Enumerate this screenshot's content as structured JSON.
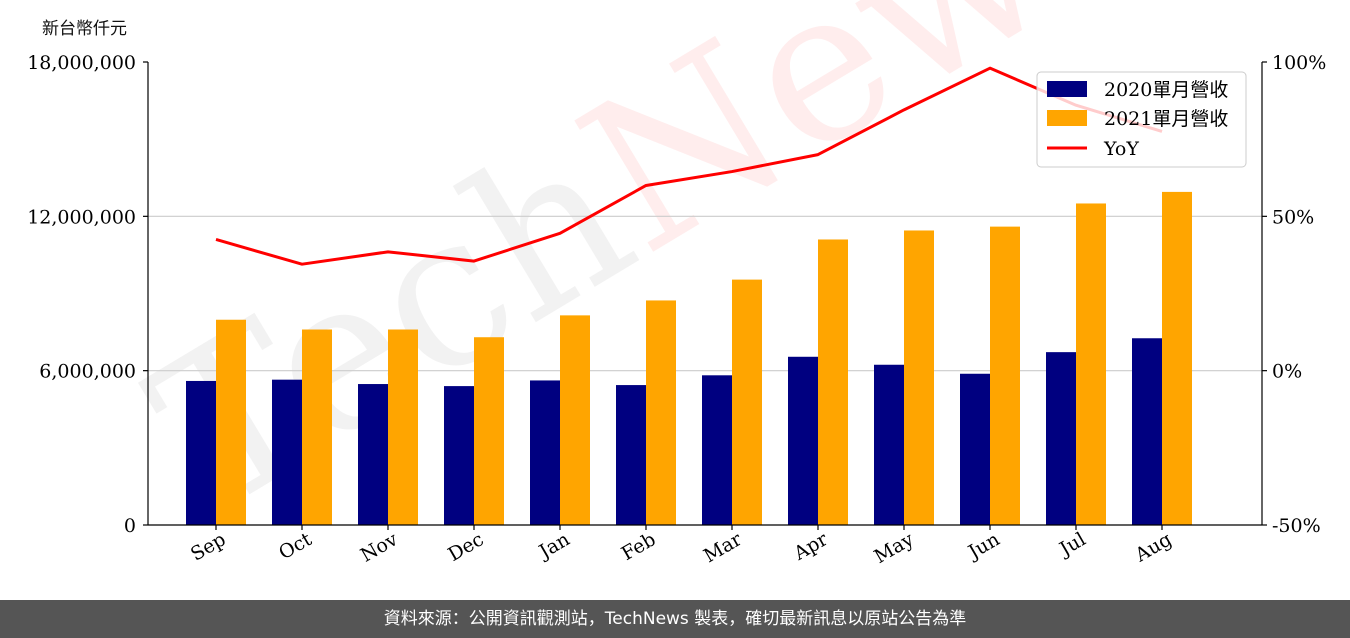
{
  "chart_data": {
    "type": "bar",
    "ylabel": "新台幣仟元",
    "categories": [
      "Sep",
      "Oct",
      "Nov",
      "Dec",
      "Jan",
      "Feb",
      "Mar",
      "Apr",
      "May",
      "Jun",
      "Jul",
      "Aug"
    ],
    "ylim": [
      0,
      18000000
    ],
    "yticks": [
      "0",
      "6,000,000",
      "12,000,000",
      "18,000,000"
    ],
    "ytick_values": [
      0,
      6000000,
      12000000,
      18000000
    ],
    "y2lim": [
      -50,
      100
    ],
    "y2ticks": [
      "-50%",
      "0%",
      "50%",
      "100%"
    ],
    "y2tick_values": [
      -50,
      0,
      50,
      100
    ],
    "series": [
      {
        "name": "2020單月營收",
        "kind": "bar",
        "color": "#000080",
        "values": [
          5600000,
          5650000,
          5480000,
          5400000,
          5620000,
          5440000,
          5820000,
          6540000,
          6230000,
          5880000,
          6720000,
          7260000
        ]
      },
      {
        "name": "2021單月營收",
        "kind": "bar",
        "color": "#FFA500",
        "values": [
          7980000,
          7600000,
          7600000,
          7300000,
          8150000,
          8730000,
          9540000,
          11100000,
          11450000,
          11600000,
          12500000,
          12950000
        ]
      },
      {
        "name": "YoY",
        "kind": "line",
        "axis": "right",
        "color": "#FF0000",
        "values": [
          42.5,
          34.5,
          38.5,
          35.5,
          44.5,
          60,
          64.5,
          70,
          84.5,
          98,
          86,
          77.5
        ]
      }
    ],
    "legend": "top-right",
    "grid": "horizontal",
    "watermark": "TechNews"
  },
  "footer": {
    "text": "資料來源：公開資訊觀測站，TechNews 製表，確切最新訊息以原站公告為準"
  }
}
